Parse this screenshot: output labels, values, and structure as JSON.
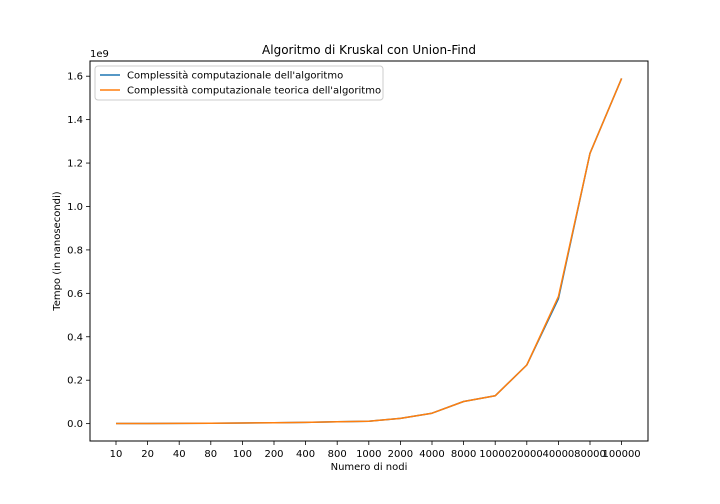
{
  "chart_data": {
    "type": "line",
    "title": "Algoritmo di Kruskal con Union-Find",
    "xlabel": "Numero di nodi",
    "ylabel": "Tempo (in nanosecondi)",
    "y_scale_label": "1e9",
    "categories": [
      "10",
      "20",
      "40",
      "80",
      "100",
      "200",
      "400",
      "800",
      "1000",
      "2000",
      "4000",
      "8000",
      "10000",
      "20000",
      "40000",
      "80000",
      "100000"
    ],
    "yticks": [
      0.0,
      0.2,
      0.4,
      0.6,
      0.8,
      1.0,
      1.2,
      1.4,
      1.6
    ],
    "ytick_labels": [
      "0.0",
      "0.2",
      "0.4",
      "0.6",
      "0.8",
      "1.0",
      "1.2",
      "1.4",
      "1.6"
    ],
    "ylim": [
      -0.08,
      1.67
    ],
    "grid": false,
    "legend_position": "top-left",
    "series": [
      {
        "name": "Complessità computazionale dell'algoritmo",
        "color": "#1f77b4",
        "values": [
          0.0005,
          0.0008,
          0.0012,
          0.0022,
          0.0028,
          0.0045,
          0.0055,
          0.009,
          0.011,
          0.024,
          0.048,
          0.102,
          0.128,
          0.27,
          0.575,
          1.245,
          1.59
        ]
      },
      {
        "name": "Complessità computazionale teorica dell'algoritmo",
        "color": "#ff7f0e",
        "values": [
          0.0005,
          0.0008,
          0.0012,
          0.0022,
          0.0028,
          0.0045,
          0.0055,
          0.009,
          0.011,
          0.024,
          0.048,
          0.102,
          0.128,
          0.27,
          0.585,
          1.245,
          1.59
        ]
      }
    ]
  }
}
